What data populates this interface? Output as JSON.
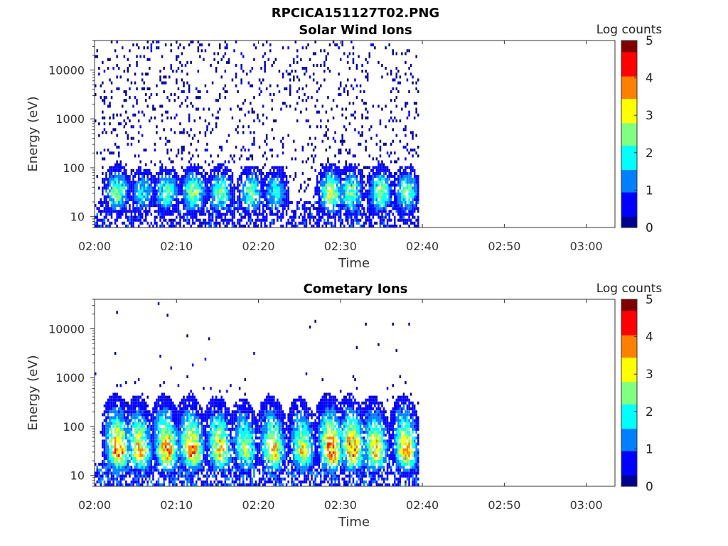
{
  "figure_title": "RPCICA151127T02.PNG",
  "colors": {
    "colormap": [
      "#00008f",
      "#0000ff",
      "#0080ff",
      "#00ffff",
      "#80ff80",
      "#ffff00",
      "#ff8000",
      "#ff0000",
      "#800000"
    ]
  },
  "chart_data": [
    {
      "type": "heatmap",
      "title": "Solar Wind Ions",
      "xlabel": "Time",
      "ylabel": "Energy (eV)",
      "x_ticks": [
        "02:00",
        "02:10",
        "02:20",
        "02:30",
        "02:40",
        "02:50",
        "03:00"
      ],
      "x_tick_minutes": [
        0,
        10,
        20,
        30,
        40,
        50,
        60
      ],
      "xlim_minutes": [
        0,
        63.5
      ],
      "y_ticks": [
        "10",
        "100",
        "1000",
        "10000"
      ],
      "y_tick_values": [
        10,
        100,
        1000,
        10000
      ],
      "ylim": [
        6,
        40000
      ],
      "y_scale": "log",
      "data_end_minute": 39.5,
      "colorbar": {
        "label": "Log counts",
        "ticks": [
          "0",
          "1",
          "2",
          "3",
          "4",
          "5"
        ],
        "range": [
          0,
          5
        ]
      },
      "bursts": [
        {
          "t": 2.7,
          "peak_log_counts": 2.5
        },
        {
          "t": 5.8,
          "peak_log_counts": 1.8
        },
        {
          "t": 8.7,
          "peak_log_counts": 2.3
        },
        {
          "t": 12.0,
          "peak_log_counts": 2.6
        },
        {
          "t": 15.3,
          "peak_log_counts": 2.5
        },
        {
          "t": 19.0,
          "peak_log_counts": 2.3
        },
        {
          "t": 22.0,
          "peak_log_counts": 1.9
        },
        {
          "t": 28.7,
          "peak_log_counts": 2.8
        },
        {
          "t": 31.2,
          "peak_log_counts": 2.4
        },
        {
          "t": 34.8,
          "peak_log_counts": 2.6
        },
        {
          "t": 38.0,
          "peak_log_counts": 2.3
        }
      ],
      "background_log_counts": 0.1
    },
    {
      "type": "heatmap",
      "title": "Cometary Ions",
      "xlabel": "Time",
      "ylabel": "Energy (eV)",
      "x_ticks": [
        "02:00",
        "02:10",
        "02:20",
        "02:30",
        "02:40",
        "02:50",
        "03:00"
      ],
      "x_tick_minutes": [
        0,
        10,
        20,
        30,
        40,
        50,
        60
      ],
      "xlim_minutes": [
        0,
        63.5
      ],
      "y_ticks": [
        "10",
        "100",
        "1000",
        "10000"
      ],
      "y_tick_values": [
        10,
        100,
        1000,
        10000
      ],
      "ylim": [
        6,
        40000
      ],
      "y_scale": "log",
      "data_end_minute": 39.5,
      "colorbar": {
        "label": "Log counts",
        "ticks": [
          "0",
          "1",
          "2",
          "3",
          "4",
          "5"
        ],
        "range": [
          0,
          5
        ]
      },
      "bursts": [
        {
          "t": 2.8,
          "peak_log_counts": 3.8
        },
        {
          "t": 5.4,
          "peak_log_counts": 3.3
        },
        {
          "t": 8.7,
          "peak_log_counts": 3.6
        },
        {
          "t": 11.8,
          "peak_log_counts": 3.6
        },
        {
          "t": 15.2,
          "peak_log_counts": 3.3
        },
        {
          "t": 18.3,
          "peak_log_counts": 2.6
        },
        {
          "t": 21.7,
          "peak_log_counts": 3.3
        },
        {
          "t": 25.3,
          "peak_log_counts": 2.9
        },
        {
          "t": 28.8,
          "peak_log_counts": 3.9
        },
        {
          "t": 31.4,
          "peak_log_counts": 3.7
        },
        {
          "t": 34.2,
          "peak_log_counts": 3.2
        },
        {
          "t": 37.9,
          "peak_log_counts": 3.5
        }
      ],
      "background_log_counts": 0.0
    }
  ]
}
